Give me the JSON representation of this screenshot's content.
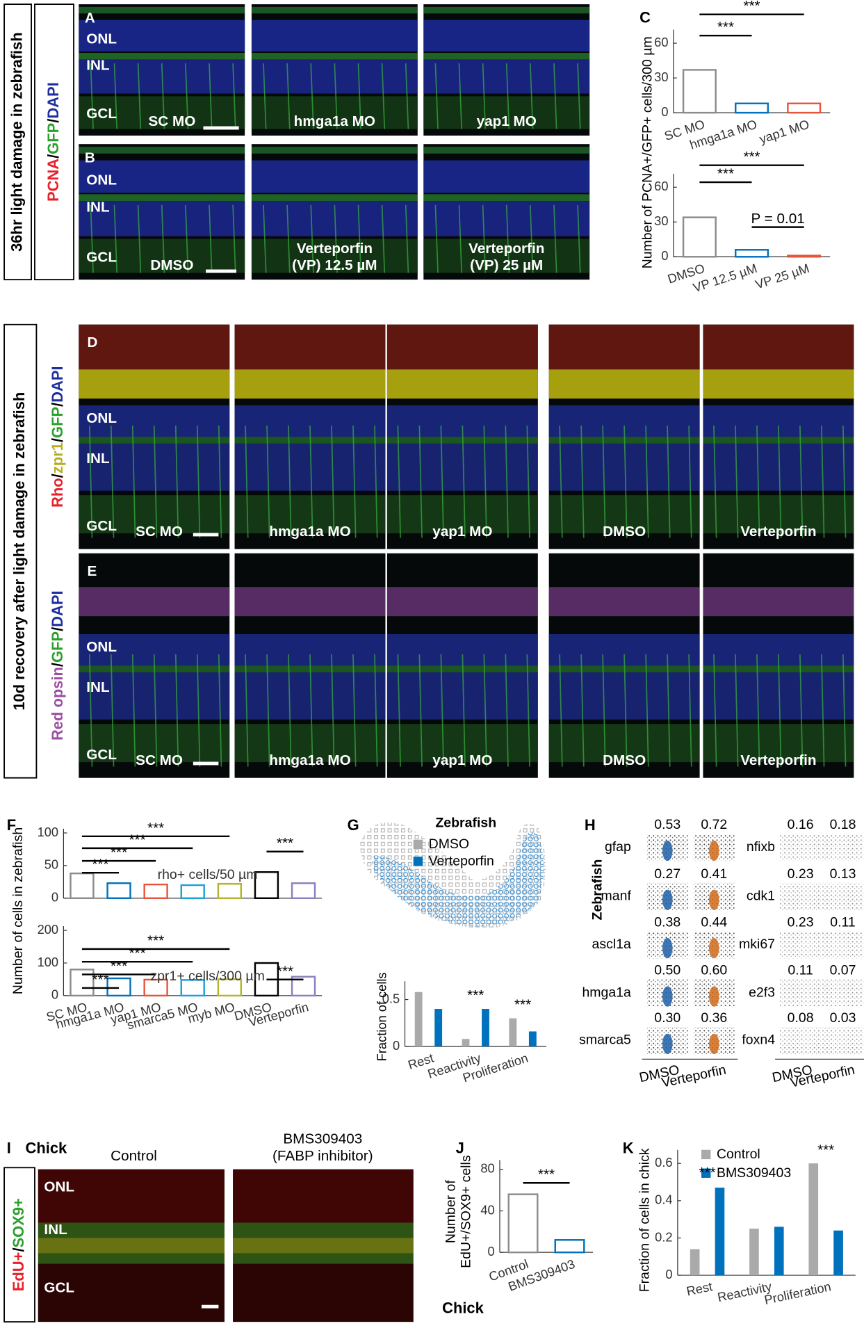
{
  "figure": {
    "part1": {
      "side_label": "36hr light damage in zebrafish",
      "channels": [
        {
          "text": "PCNA",
          "color": "#e8202a"
        },
        {
          "text": "/",
          "color": "#000000"
        },
        {
          "text": "GFP",
          "color": "#2ca02c"
        },
        {
          "text": "/",
          "color": "#000000"
        },
        {
          "text": "DAPI",
          "color": "#1f2fa0"
        }
      ]
    },
    "panel_a": {
      "letter": "A",
      "layers": [
        "ONL",
        "INL",
        "GCL"
      ],
      "conditions": [
        [
          "SC MO"
        ],
        [
          "hmga1a MO"
        ],
        [
          "yap1 MO"
        ]
      ]
    },
    "panel_b": {
      "letter": "B",
      "layers": [
        "ONL",
        "INL",
        "GCL"
      ],
      "conditions": [
        [
          "DMSO"
        ],
        [
          "Verteporfin",
          "(VP) 12.5 µM"
        ],
        [
          "Verteporfin",
          "(VP) 25 µM"
        ]
      ]
    },
    "panel_c": {
      "letter": "C"
    },
    "part2": {
      "side_label": "10d recovery after light damage in zebrafish"
    },
    "panel_d": {
      "letter": "D",
      "channels": [
        {
          "text": "Rho",
          "color": "#e8202a"
        },
        {
          "text": "/",
          "color": "#000000"
        },
        {
          "text": "zpr1",
          "color": "#b5b020"
        },
        {
          "text": "/",
          "color": "#000000"
        },
        {
          "text": "GFP",
          "color": "#2ca02c"
        },
        {
          "text": "/",
          "color": "#000000"
        },
        {
          "text": "DAPI",
          "color": "#1f2fa0"
        }
      ],
      "layers": [
        "ONL",
        "INL",
        "GCL"
      ],
      "conditions": [
        "SC MO",
        "hmga1a MO",
        "yap1 MO",
        "DMSO",
        "Verteporfin"
      ]
    },
    "panel_e": {
      "letter": "E",
      "channels": [
        {
          "text": "Red opsin",
          "color": "#9b4fa0"
        },
        {
          "text": "/",
          "color": "#000000"
        },
        {
          "text": "GFP",
          "color": "#2ca02c"
        },
        {
          "text": "/",
          "color": "#000000"
        },
        {
          "text": "DAPI",
          "color": "#1f2fa0"
        }
      ],
      "layers": [
        "ONL",
        "INL",
        "GCL"
      ],
      "conditions": [
        "SC MO",
        "hmga1a MO",
        "yap1 MO",
        "DMSO",
        "Verteporfin"
      ]
    },
    "panel_f": {
      "letter": "F"
    },
    "panel_g": {
      "letter": "G",
      "legend_title": "Zebrafish"
    },
    "panel_h": {
      "letter": "H",
      "title": "Zebrafish",
      "xlabels": [
        "DMSO",
        "Verteporfin"
      ],
      "left": {
        "genes": [
          "gfap",
          "manf",
          "ascl1a",
          "hmga1a",
          "smarca5"
        ],
        "dmso": [
          "0.53",
          "0.27",
          "0.38",
          "0.50",
          "0.30"
        ],
        "verteporfin": [
          "0.72",
          "0.41",
          "0.44",
          "0.60",
          "0.36"
        ]
      },
      "right": {
        "genes": [
          "nfixb",
          "cdk1",
          "mki67",
          "e2f3",
          "foxn4"
        ],
        "dmso": [
          "0.16",
          "0.23",
          "0.23",
          "0.11",
          "0.08"
        ],
        "verteporfin": [
          "0.18",
          "0.13",
          "0.11",
          "0.07",
          "0.03"
        ]
      }
    },
    "panel_i": {
      "letter": "I",
      "species": "Chick",
      "channels": [
        {
          "text": "EdU+",
          "color": "#e8202a"
        },
        {
          "text": "/",
          "color": "#000000"
        },
        {
          "text": "SOX9+",
          "color": "#2ca02c"
        }
      ],
      "layers": [
        "ONL",
        "INL",
        "GCL"
      ],
      "conditions": [
        [
          "Control"
        ],
        [
          "BMS309403",
          "(FABP inhibitor)"
        ]
      ]
    },
    "panel_j": {
      "letter": "J",
      "species": "Chick"
    },
    "panel_k": {
      "letter": "K"
    }
  },
  "chart_data": [
    {
      "type": "bar",
      "bar_style": "outline",
      "ylabel": "Number of PCNA+/GFP+ cells/300 µm",
      "categories": [
        "SC MO",
        "hmga1a MO",
        "yap1 MO"
      ],
      "values": [
        37,
        8,
        8
      ],
      "colors": [
        "#8c8c8c",
        "#0072bd",
        "#e8543a"
      ],
      "ylim": [
        0,
        68
      ],
      "yticks": [
        0,
        30,
        60
      ],
      "annotations": [
        "***",
        "***"
      ]
    },
    {
      "type": "bar",
      "bar_style": "outline",
      "categories": [
        "DMSO",
        "VP 12.5 µM",
        "VP 25 µM"
      ],
      "values": [
        34,
        6,
        1
      ],
      "colors": [
        "#8c8c8c",
        "#0072bd",
        "#e8543a"
      ],
      "ylim": [
        0,
        68
      ],
      "yticks": [
        0,
        30,
        60
      ],
      "annotations": [
        "***",
        "***",
        "P = 0.01"
      ]
    },
    {
      "type": "bar",
      "bar_style": "outline",
      "ylabel": "Number of cells in zebrafish",
      "note": "rho+ cells/50 µm",
      "values": [
        38,
        23,
        21,
        20,
        22,
        40,
        23
      ],
      "colors": [
        "#8c8c8c",
        "#0072bd",
        "#e8543a",
        "#1aa3d6",
        "#b5b52a",
        "#000000",
        "#8c7fc0"
      ],
      "ylim": [
        0,
        100
      ],
      "yticks": [
        0,
        50,
        100
      ],
      "annotations": [
        "***",
        "***",
        "***",
        "***",
        "***"
      ]
    },
    {
      "type": "bar",
      "bar_style": "outline",
      "note": "zpr1+ cells/300 µm",
      "categories": [
        "SC MO",
        "hmga1a MO",
        "yap1 MO",
        "smarca5 MO",
        "myb MO",
        "DMSO",
        "Verteporfin"
      ],
      "values": [
        80,
        53,
        49,
        48,
        50,
        100,
        58
      ],
      "colors": [
        "#8c8c8c",
        "#0072bd",
        "#e8543a",
        "#1aa3d6",
        "#b5b52a",
        "#000000",
        "#8c7fc0"
      ],
      "ylim": [
        0,
        200
      ],
      "yticks": [
        0,
        100,
        200
      ],
      "annotations": [
        "***",
        "***",
        "***",
        "***",
        "***"
      ]
    },
    {
      "type": "grouped_bar",
      "ylabel": "Fraction of cells",
      "categories": [
        "Rest",
        "Reactivity",
        "Proliferation"
      ],
      "series": [
        {
          "name": "DMSO",
          "color": "#aaaaaa",
          "values": [
            0.58,
            0.08,
            0.3
          ]
        },
        {
          "name": "Verteporfin",
          "color": "#0072bd",
          "values": [
            0.4,
            0.4,
            0.16
          ]
        }
      ],
      "ylim": [
        0,
        0.65
      ],
      "yticks": [
        0,
        0.5
      ],
      "annotations": [
        "***",
        "***"
      ]
    },
    {
      "type": "bar",
      "bar_style": "outline",
      "ylabel": [
        "Number of",
        "EdU+/SOX9+ cells"
      ],
      "categories": [
        "Control",
        "BMS309403"
      ],
      "values": [
        56,
        12
      ],
      "colors": [
        "#8c8c8c",
        "#0072bd"
      ],
      "ylim": [
        0,
        85
      ],
      "yticks": [
        0,
        40,
        80
      ],
      "annotations": [
        "***"
      ]
    },
    {
      "type": "grouped_bar",
      "ylabel": "Fraction of cells in chick",
      "categories": [
        "Rest",
        "Reactivity",
        "Proliferation"
      ],
      "series": [
        {
          "name": "Control",
          "color": "#aaaaaa",
          "values": [
            0.14,
            0.25,
            0.6
          ]
        },
        {
          "name": "BMS309403",
          "color": "#0072bd",
          "values": [
            0.47,
            0.26,
            0.24
          ]
        }
      ],
      "ylim": [
        0,
        0.65
      ],
      "yticks": [
        0,
        0.2,
        0.4,
        0.6
      ],
      "annotations": [
        "***",
        "***"
      ]
    }
  ]
}
